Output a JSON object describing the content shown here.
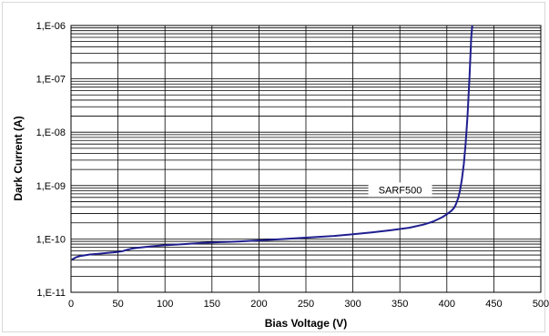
{
  "chart_data": {
    "type": "line",
    "title": "",
    "xlabel": "Bias Voltage (V)",
    "ylabel": "Dark Current (A)",
    "xlim": [
      0,
      500
    ],
    "ylim": [
      1e-11,
      1e-06
    ],
    "y_scale": "log",
    "grid": true,
    "legend": "none",
    "x_ticks": [
      0,
      50,
      100,
      150,
      200,
      250,
      300,
      350,
      400,
      450,
      500
    ],
    "x_tick_labels": [
      "0",
      "50",
      "100",
      "150",
      "200",
      "250",
      "300",
      "350",
      "400",
      "450",
      "500"
    ],
    "y_ticks": [
      1e-11,
      1e-10,
      1e-09,
      1e-08,
      1e-07,
      1e-06
    ],
    "y_tick_labels": [
      "1,E-11",
      "1,E-10",
      "1,E-09",
      "1,E-08",
      "1,E-07",
      "1,E-06"
    ],
    "annotations": [
      {
        "text": "SARF500",
        "x": 392,
        "y": 3e-10
      }
    ],
    "series": [
      {
        "name": "SARF500",
        "color": "#1f1f8f",
        "x": [
          1,
          5,
          10,
          20,
          30,
          40,
          50,
          55,
          60,
          65,
          70,
          80,
          90,
          100,
          120,
          140,
          160,
          180,
          200,
          220,
          240,
          260,
          280,
          300,
          320,
          340,
          360,
          375,
          385,
          395,
          400,
          405,
          408,
          410,
          412,
          414,
          416,
          418,
          420,
          422,
          424,
          425,
          426,
          427,
          428
        ],
        "y": [
          4.1e-11,
          4.5e-11,
          4.8e-11,
          5.1e-11,
          5.3e-11,
          5.5e-11,
          5.7e-11,
          5.9e-11,
          6.3e-11,
          6.6e-11,
          6.8e-11,
          7.1e-11,
          7.4e-11,
          7.6e-11,
          8e-11,
          8.4e-11,
          8.7e-11,
          9e-11,
          9.4e-11,
          9.8e-11,
          1.03e-10,
          1.08e-10,
          1.14e-10,
          1.22e-10,
          1.32e-10,
          1.45e-10,
          1.62e-10,
          1.85e-10,
          2.1e-10,
          2.55e-10,
          2.9e-10,
          3.4e-10,
          3.9e-10,
          4.6e-10,
          5.8e-10,
          8e-10,
          1.3e-09,
          2.5e-09,
          6e-09,
          2e-08,
          1e-07,
          2.5e-07,
          6e-07,
          1e-06,
          1.4e-06
        ]
      }
    ]
  }
}
